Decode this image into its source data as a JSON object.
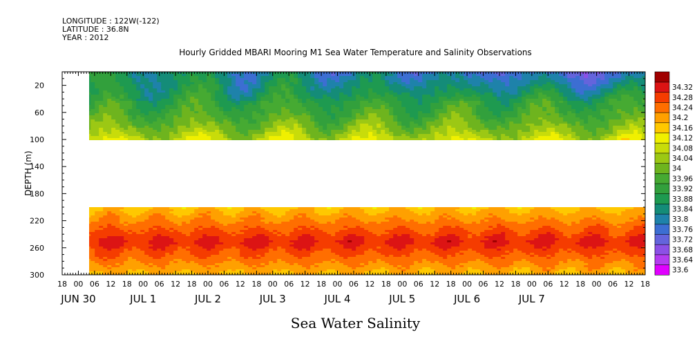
{
  "header": {
    "longitude": "LONGITUDE : 122W(-122)",
    "latitude": "LATITUDE : 36.8N",
    "year": "YEAR : 2012"
  },
  "chart_data": {
    "type": "heatmap",
    "title": "Hourly Gridded MBARI Mooring M1 Sea Water Temperature and Salinity Observations",
    "footer_title": "Sea Water Salinity",
    "ylabel": "DEPTH (m)",
    "y_range": [
      300,
      0
    ],
    "y_ticks": [
      20,
      60,
      100,
      140,
      180,
      220,
      260,
      300
    ],
    "x_hour_ticks": [
      "18",
      "00",
      "06",
      "12",
      "18",
      "00",
      "06",
      "12",
      "18",
      "00",
      "06",
      "12",
      "18",
      "00",
      "06",
      "12",
      "18",
      "00",
      "06",
      "12",
      "18",
      "00",
      "06",
      "12",
      "18",
      "00",
      "06",
      "12",
      "18",
      "00",
      "06",
      "12",
      "18",
      "00",
      "06",
      "12",
      "18"
    ],
    "x_day_labels": [
      {
        "label": "JUN 30",
        "hour_index": 1
      },
      {
        "label": "JUL 1",
        "hour_index": 5
      },
      {
        "label": "JUL 2",
        "hour_index": 9
      },
      {
        "label": "JUL 3",
        "hour_index": 13
      },
      {
        "label": "JUL 4",
        "hour_index": 17
      },
      {
        "label": "JUL 5",
        "hour_index": 21
      },
      {
        "label": "JUL 6",
        "hour_index": 25
      },
      {
        "label": "JUL 7",
        "hour_index": 29
      }
    ],
    "data_start_hour_index": 1.5,
    "data_layers": [
      {
        "depth_range": [
          0,
          100
        ],
        "salinity_range": [
          33.64,
          34.1
        ],
        "description_colors": "green to yellow, blue patches near surface"
      },
      {
        "depth_range": [
          200,
          300
        ],
        "salinity_range": [
          34.16,
          34.32
        ],
        "description_colors": "orange to dark red, max near 250 m"
      }
    ],
    "colorbar": {
      "levels": [
        "33.6",
        "33.64",
        "33.68",
        "33.72",
        "33.76",
        "33.8",
        "33.84",
        "33.88",
        "33.92",
        "33.96",
        "34",
        "34.04",
        "34.08",
        "34.12",
        "34.16",
        "34.2",
        "34.24",
        "34.28",
        "34.32"
      ],
      "colors": [
        "#e000ff",
        "#b43cf0",
        "#8c50e6",
        "#6464dc",
        "#3c6ed2",
        "#1e82aa",
        "#148c78",
        "#1e9a50",
        "#32a03c",
        "#46aa32",
        "#6eb41e",
        "#9cc814",
        "#c8dc0a",
        "#f0f000",
        "#ffc800",
        "#ffa000",
        "#ff6e00",
        "#f53c00",
        "#dc1414",
        "#a00000"
      ]
    }
  }
}
